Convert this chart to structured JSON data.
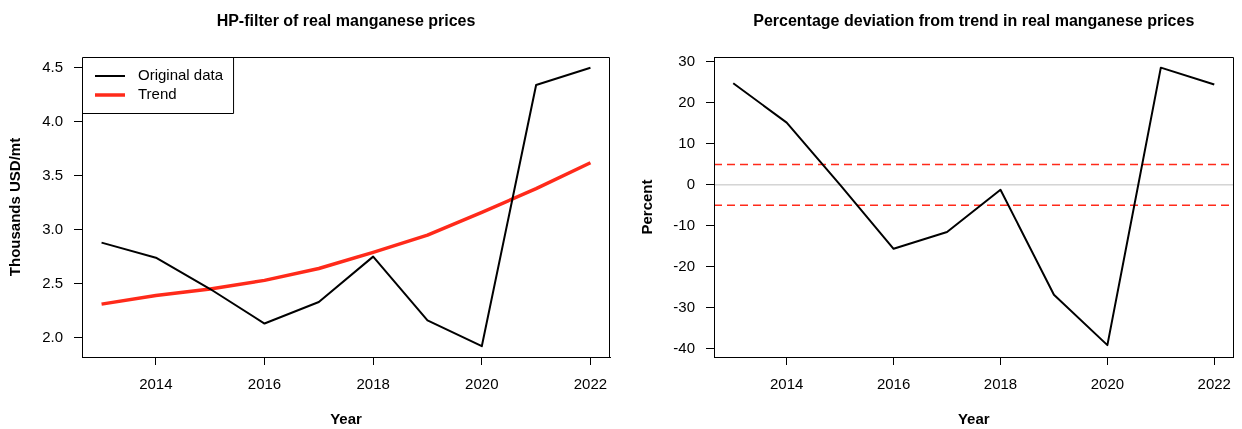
{
  "chart_data": [
    {
      "type": "line",
      "title": "HP-filter of real manganese prices",
      "xlabel": "Year",
      "ylabel": "Thousands USD/mt",
      "x": [
        2013,
        2014,
        2015,
        2016,
        2017,
        2018,
        2019,
        2020,
        2021,
        2022
      ],
      "series": [
        {
          "name": "Original data",
          "color": "#000000",
          "values": [
            2.88,
            2.74,
            2.45,
            2.13,
            2.33,
            2.75,
            2.16,
            1.92,
            4.34,
            4.5
          ]
        },
        {
          "name": "Trend",
          "color": "#ff2a1a",
          "values": [
            2.31,
            2.39,
            2.45,
            2.53,
            2.64,
            2.79,
            2.95,
            3.16,
            3.38,
            3.62
          ]
        }
      ],
      "xlim": [
        2012.64,
        2022.36
      ],
      "xticks": [
        2014,
        2016,
        2018,
        2020,
        2022
      ],
      "ylim": [
        1.82,
        4.6
      ],
      "yticks": [
        {
          "value": 2,
          "label": "2.0"
        },
        2.5,
        {
          "value": 3,
          "label": "3.0"
        },
        3.5,
        {
          "value": 4,
          "label": "4.0"
        },
        4.5
      ],
      "legend": "top left"
    },
    {
      "type": "line",
      "title": "Percentage deviation from trend in real manganese prices",
      "xlabel": "Year",
      "ylabel": "Percent",
      "x": [
        2013,
        2014,
        2015,
        2016,
        2017,
        2018,
        2019,
        2020,
        2021,
        2022
      ],
      "color": "#000000",
      "values": [
        24.8,
        15.2,
        0,
        -15.6,
        -11.5,
        -1.2,
        -26.8,
        -39.1,
        28.6,
        24.5
      ],
      "xlim": [
        2012.64,
        2022.36
      ],
      "xticks": [
        2014,
        2016,
        2018,
        2020,
        2022
      ],
      "ylim": [
        -42,
        31.2
      ],
      "yticks": [
        -40,
        -30,
        -20,
        -10,
        0,
        10,
        20,
        30
      ],
      "ref_lines": [
        {
          "axis": "y",
          "value": 5,
          "color": "#ff2a1a",
          "line_style": "dashed"
        },
        {
          "axis": "y",
          "value": -5,
          "color": "#ff2a1a",
          "line_style": "dashed"
        },
        {
          "axis": "y",
          "value": 0,
          "color": "#bebebe",
          "line_style": "solid"
        }
      ]
    }
  ]
}
